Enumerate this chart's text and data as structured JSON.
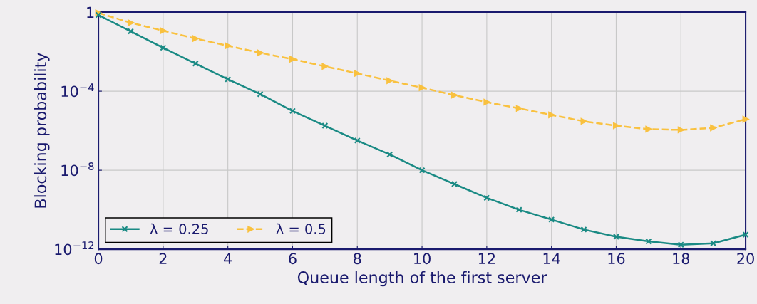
{
  "chart_data": {
    "type": "line",
    "xlabel": "Queue length of the first server",
    "ylabel": "Blocking probability",
    "x": [
      0,
      1,
      2,
      3,
      4,
      5,
      6,
      7,
      8,
      9,
      10,
      11,
      12,
      13,
      14,
      15,
      16,
      17,
      18,
      19,
      20
    ],
    "series": [
      {
        "name": "λ = 0.25",
        "color": "#1a8a84",
        "marker": "cross",
        "line_style": "solid",
        "values": [
          0.72,
          0.107,
          0.0158,
          0.0025,
          0.0004,
          7.1e-05,
          1e-05,
          1.8e-06,
          3.2e-07,
          6.3e-08,
          1e-08,
          2e-09,
          4e-10,
          1e-10,
          3.2e-11,
          1e-11,
          4.3e-12,
          2.5e-12,
          1.7e-12,
          2e-12,
          5.5e-12
        ]
      },
      {
        "name": "λ = 0.5",
        "color": "#f9c13f",
        "marker": "triangle",
        "line_style": "dashed",
        "values": [
          0.91,
          0.29,
          0.115,
          0.046,
          0.02,
          0.0087,
          0.0042,
          0.0018,
          0.00079,
          0.00034,
          0.00015,
          6.3e-05,
          2.8e-05,
          1.35e-05,
          6.3e-06,
          3e-06,
          1.8e-06,
          1.2e-06,
          1.1e-06,
          1.4e-06,
          3.8e-06
        ]
      }
    ],
    "log": "y",
    "xlim": [
      0,
      20
    ],
    "xticks": [
      0,
      2,
      4,
      6,
      8,
      10,
      12,
      14,
      16,
      18,
      20
    ],
    "ylim": [
      1e-12,
      1
    ],
    "yticks": [
      {
        "value": 1e-12,
        "label": "10$^{−12}$"
      },
      {
        "value": 1e-08,
        "label": "10$^{−8}$"
      },
      {
        "value": 0.0001,
        "label": "10$^{−4}$"
      },
      1
    ],
    "grid": true,
    "legend": "bottom left"
  }
}
